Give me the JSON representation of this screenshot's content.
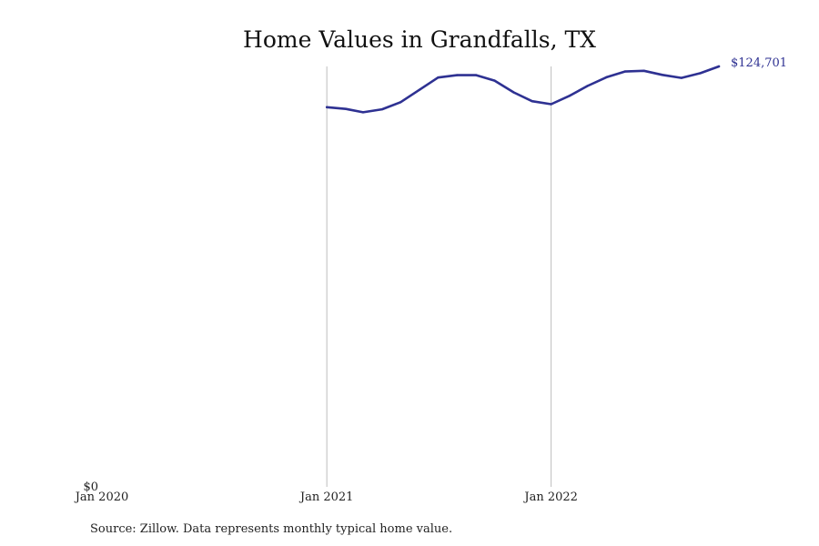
{
  "chart_data": {
    "type": "line",
    "title": "Home Values in Grandfalls, TX",
    "xlabel": "",
    "ylabel": "",
    "x_ticks": [
      "Jan 2020",
      "Jan 2021",
      "Jan 2022"
    ],
    "y_ticks": [
      "$0"
    ],
    "ylim": [
      0,
      124701
    ],
    "grid": "vertical lines at Jan 2021 and Jan 2022",
    "series": [
      {
        "color": "#2e3192",
        "x": [
          "2021-01",
          "2021-02",
          "2021-03",
          "2021-04",
          "2021-05",
          "2021-06",
          "2021-07",
          "2021-08",
          "2021-09",
          "2021-10",
          "2021-11",
          "2021-12",
          "2022-01",
          "2022-02",
          "2022-03",
          "2022-04",
          "2022-05",
          "2022-06",
          "2022-07",
          "2022-08",
          "2022-09",
          "2022-10"
        ],
        "values": [
          112600,
          112100,
          111100,
          112000,
          114100,
          117800,
          121400,
          122100,
          122100,
          120500,
          117000,
          114400,
          113500,
          116100,
          118900,
          121500,
          123200,
          123400,
          122200,
          121300,
          122700,
          124701
        ],
        "end_label": "$124,701"
      }
    ]
  },
  "source_note": "Source: Zillow. Data represents monthly typical home value."
}
